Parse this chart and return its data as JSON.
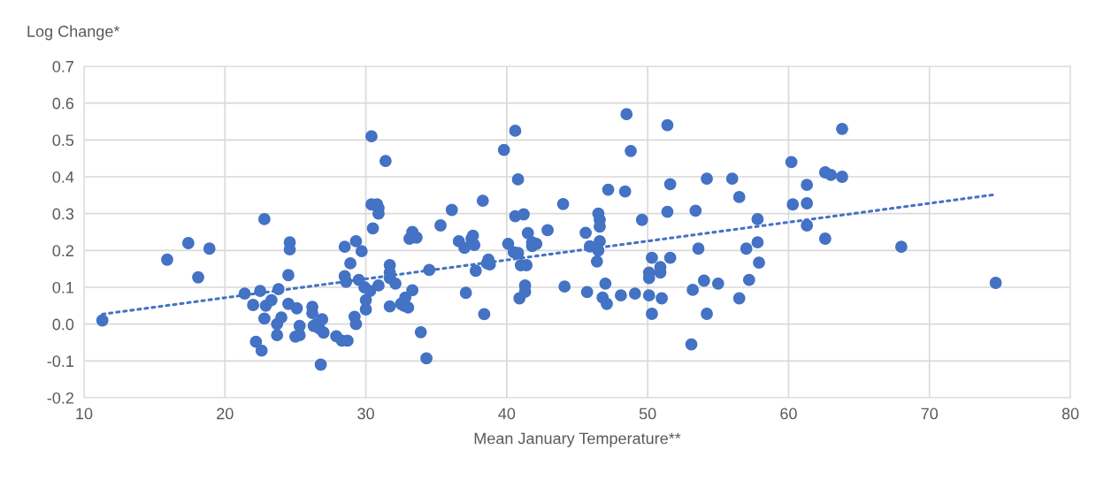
{
  "chart_data": {
    "type": "scatter",
    "xlabel": "Mean January Temperature**",
    "ylabel": "Log Change*",
    "xlim": [
      10,
      80
    ],
    "xticks": [
      10,
      20,
      30,
      40,
      50,
      60,
      70,
      80
    ],
    "ylim": [
      -0.2,
      0.7
    ],
    "yticks": [
      {
        "value": -0.2,
        "label": "-0.2"
      },
      {
        "value": -0.1,
        "label": "-0.1"
      },
      {
        "value": 0,
        "label": "0.0"
      },
      {
        "value": 0.1,
        "label": "0.1"
      },
      {
        "value": 0.2,
        "label": "0.2"
      },
      {
        "value": 0.3,
        "label": "0.3"
      },
      {
        "value": 0.4,
        "label": "0.4"
      },
      {
        "value": 0.5,
        "label": "0.5"
      },
      {
        "value": 0.6,
        "label": "0.6"
      },
      {
        "value": 0.7,
        "label": "0.7"
      }
    ],
    "grid": true,
    "marker": "circle",
    "series": [
      {
        "color": "#4472c4",
        "x": [
          11.3,
          15.9,
          17.4,
          18.1,
          18.9,
          21.4,
          22,
          22.2,
          22.5,
          22.6,
          22.8,
          22.8,
          22.9,
          23.3,
          23.7,
          23.7,
          23.8,
          24,
          24.5,
          24.5,
          24.6,
          24.6,
          25,
          25.1,
          25.3,
          25.3,
          26.2,
          26.2,
          26.3,
          26.5,
          26.7,
          26.8,
          26.9,
          27,
          27.9,
          28.3,
          28.5,
          28.5,
          28.6,
          28.7,
          28.9,
          29.2,
          29.3,
          29.3,
          29.5,
          29.7,
          29.9,
          30,
          30,
          30.3,
          30.4,
          30.5,
          30.4,
          30.8,
          30.9,
          30.9,
          30.9,
          31.4,
          31.7,
          31.7,
          31.7,
          31.7,
          32.1,
          32.5,
          32.7,
          32.8,
          33,
          33.1,
          33.3,
          33.3,
          33.6,
          33.9,
          34.3,
          34.5,
          35.3,
          36.1,
          36.6,
          37,
          37.1,
          37.5,
          37.6,
          37.7,
          37.8,
          38.3,
          38.4,
          38.6,
          38.7,
          38.8,
          39.8,
          40.1,
          40.5,
          40.6,
          40.6,
          40.8,
          40.8,
          40.9,
          41,
          41.2,
          41.3,
          41.3,
          41.4,
          41.5,
          41.8,
          41.8,
          42.1,
          42.9,
          44,
          44.1,
          45.6,
          45.7,
          45.9,
          46.4,
          46.5,
          46.6,
          46.6,
          46.6,
          46.5,
          46.8,
          47,
          47.1,
          47.2,
          48.1,
          48.5,
          48.4,
          48.8,
          49.1,
          49.6,
          50.1,
          50.1,
          50.1,
          50.3,
          50.3,
          50.9,
          50.9,
          51,
          51.4,
          51.4,
          51.6,
          51.6,
          53.2,
          53.1,
          53.4,
          53.6,
          54,
          54.2,
          54.2,
          55,
          56,
          56.5,
          56.5,
          57,
          57.2,
          57.8,
          57.8,
          57.9,
          60.2,
          60.3,
          61.3,
          61.3,
          61.3,
          62.6,
          62.6,
          63,
          63.8,
          63.8,
          68,
          74.7
        ],
        "values": [
          0.01,
          0.175,
          0.22,
          0.127,
          0.205,
          0.083,
          0.052,
          -0.048,
          0.09,
          -0.072,
          0.015,
          0.285,
          0.05,
          0.065,
          -0.03,
          0.0,
          0.095,
          0.018,
          0.133,
          0.055,
          0.222,
          0.203,
          -0.034,
          0.043,
          -0.005,
          -0.03,
          0.047,
          0.03,
          -0.005,
          0.0,
          -0.012,
          -0.11,
          0.013,
          -0.023,
          -0.033,
          -0.045,
          0.21,
          0.13,
          0.115,
          -0.045,
          0.165,
          0.02,
          0.225,
          0.0,
          0.12,
          0.198,
          0.1,
          0.065,
          0.04,
          0.09,
          0.51,
          0.26,
          0.325,
          0.325,
          0.315,
          0.3,
          0.105,
          0.443,
          0.16,
          0.14,
          0.125,
          0.048,
          0.11,
          0.055,
          0.05,
          0.072,
          0.045,
          0.232,
          0.25,
          0.092,
          0.235,
          -0.022,
          -0.093,
          0.147,
          0.268,
          0.31,
          0.225,
          0.207,
          0.085,
          0.232,
          0.24,
          0.215,
          0.145,
          0.335,
          0.027,
          0.165,
          0.175,
          0.162,
          0.473,
          0.218,
          0.195,
          0.525,
          0.293,
          0.193,
          0.393,
          0.07,
          0.16,
          0.298,
          0.105,
          0.088,
          0.16,
          0.247,
          0.222,
          0.212,
          0.218,
          0.255,
          0.326,
          0.102,
          0.248,
          0.087,
          0.211,
          0.17,
          0.3,
          0.283,
          0.265,
          0.225,
          0.2,
          0.072,
          0.11,
          0.055,
          0.365,
          0.078,
          0.57,
          0.36,
          0.47,
          0.083,
          0.283,
          0.14,
          0.125,
          0.078,
          0.18,
          0.028,
          0.155,
          0.14,
          0.07,
          0.54,
          0.305,
          0.38,
          0.18,
          0.093,
          -0.055,
          0.308,
          0.205,
          0.118,
          0.395,
          0.028,
          0.11,
          0.395,
          0.345,
          0.07,
          0.205,
          0.12,
          0.285,
          0.222,
          0.167,
          0.44,
          0.325,
          0.378,
          0.328,
          0.268,
          0.412,
          0.232,
          0.405,
          0.53,
          0.4,
          0.21,
          0.112
        ]
      },
      {
        "type": "line",
        "color": "#4472c4",
        "line_style": "dotted",
        "marker": "none",
        "x": [
          11.3,
          74.7
        ],
        "values": [
          0.027,
          0.352
        ]
      }
    ]
  }
}
